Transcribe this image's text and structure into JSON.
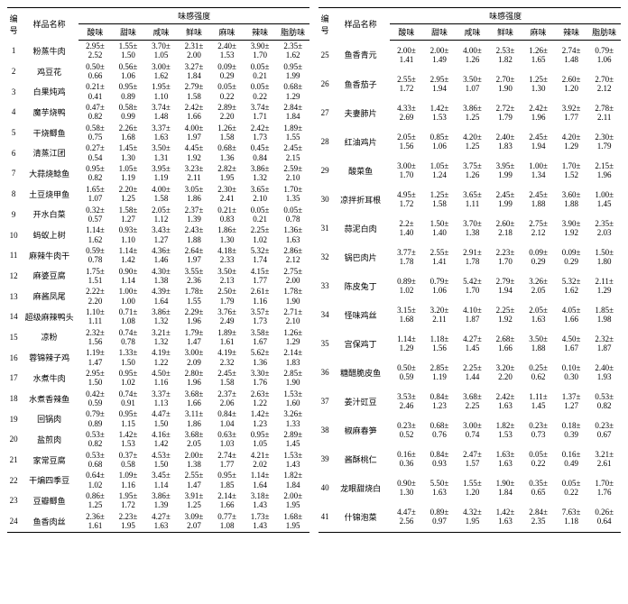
{
  "headers": {
    "num": "编号",
    "name": "样品名称",
    "group": "味感强度",
    "cols": [
      "酸味",
      "甜味",
      "咸味",
      "鲜味",
      "麻味",
      "辣味",
      "脂肪味"
    ]
  },
  "left": [
    {
      "n": "1",
      "name": "粉蒸牛肉",
      "v": [
        [
          "2.95±",
          "2.52"
        ],
        [
          "1.55±",
          "1.50"
        ],
        [
          "3.70±",
          "1.05"
        ],
        [
          "2.31±",
          "2.00"
        ],
        [
          "2.40±",
          "1.53"
        ],
        [
          "3.90±",
          "1.70"
        ],
        [
          "2.35±",
          "1.62"
        ]
      ]
    },
    {
      "n": "2",
      "name": "鸡豆花",
      "v": [
        [
          "0.50±",
          "0.66"
        ],
        [
          "0.56±",
          "1.06"
        ],
        [
          "3.00±",
          "1.62"
        ],
        [
          "3.27±",
          "1.84"
        ],
        [
          "0.09±",
          "0.29"
        ],
        [
          "0.05±",
          "0.21"
        ],
        [
          "0.95±",
          "1.99"
        ]
      ]
    },
    {
      "n": "3",
      "name": "白果炖鸡",
      "v": [
        [
          "0.21±",
          "0.41"
        ],
        [
          "0.95±",
          "0.89"
        ],
        [
          "1.95±",
          "1.10"
        ],
        [
          "2.79±",
          "1.58"
        ],
        [
          "0.05±",
          "0.22"
        ],
        [
          "0.05±",
          "0.22"
        ],
        [
          "0.68±",
          "1.29"
        ]
      ]
    },
    {
      "n": "4",
      "name": "魔芋烧鸭",
      "v": [
        [
          "0.47±",
          "0.82"
        ],
        [
          "0.58±",
          "0.99"
        ],
        [
          "3.74±",
          "1.48"
        ],
        [
          "2.42±",
          "1.66"
        ],
        [
          "2.89±",
          "2.20"
        ],
        [
          "3.74±",
          "1.71"
        ],
        [
          "2.84±",
          "1.84"
        ]
      ]
    },
    {
      "n": "5",
      "name": "干烧鲫鱼",
      "v": [
        [
          "0.58±",
          "0.75"
        ],
        [
          "2.26±",
          "1.68"
        ],
        [
          "3.37±",
          "1.63"
        ],
        [
          "4.00±",
          "1.97"
        ],
        [
          "1.26±",
          "1.58"
        ],
        [
          "2.42±",
          "1.73"
        ],
        [
          "1.89±",
          "1.55"
        ]
      ]
    },
    {
      "n": "6",
      "name": "清蒸江团",
      "v": [
        [
          "0.27±",
          "0.54"
        ],
        [
          "1.45±",
          "1.30"
        ],
        [
          "3.50±",
          "1.31"
        ],
        [
          "4.45±",
          "1.92"
        ],
        [
          "0.68±",
          "1.36"
        ],
        [
          "0.45±",
          "0.84"
        ],
        [
          "2.45±",
          "2.15"
        ]
      ]
    },
    {
      "n": "7",
      "name": "大蒜烧鲶鱼",
      "v": [
        [
          "0.95±",
          "0.82"
        ],
        [
          "1.05±",
          "1.19"
        ],
        [
          "3.95±",
          "1.19"
        ],
        [
          "3.23±",
          "2.11"
        ],
        [
          "2.82±",
          "1.95"
        ],
        [
          "3.86±",
          "1.32"
        ],
        [
          "2.59±",
          "2.10"
        ]
      ]
    },
    {
      "n": "8",
      "name": "土豆烧甲鱼",
      "v": [
        [
          "1.65±",
          "1.07"
        ],
        [
          "2.20±",
          "1.25"
        ],
        [
          "4.00±",
          "1.58"
        ],
        [
          "3.05±",
          "1.86"
        ],
        [
          "2.30±",
          "2.41"
        ],
        [
          "3.65±",
          "2.10"
        ],
        [
          "1.70±",
          "1.35"
        ]
      ]
    },
    {
      "n": "9",
      "name": "开水白菜",
      "v": [
        [
          "0.32±",
          "0.57"
        ],
        [
          "1.58±",
          "1.27"
        ],
        [
          "2.05±",
          "1.12"
        ],
        [
          "2.37±",
          "1.39"
        ],
        [
          "0.21±",
          "0.83"
        ],
        [
          "0.05±",
          "0.21"
        ],
        [
          "0.05±",
          "0.78"
        ]
      ]
    },
    {
      "n": "10",
      "name": "蚂蚁上树",
      "v": [
        [
          "1.14±",
          "1.62"
        ],
        [
          "0.93±",
          "1.10"
        ],
        [
          "3.43±",
          "1.27"
        ],
        [
          "2.43±",
          "1.88"
        ],
        [
          "1.86±",
          "1.30"
        ],
        [
          "2.25±",
          "1.02"
        ],
        [
          "1.36±",
          "1.63"
        ]
      ]
    },
    {
      "n": "11",
      "name": "麻辣牛肉干",
      "v": [
        [
          "0.59±",
          "0.78"
        ],
        [
          "1.14±",
          "1.42"
        ],
        [
          "4.36±",
          "1.46"
        ],
        [
          "2.64±",
          "1.97"
        ],
        [
          "4.18±",
          "2.33"
        ],
        [
          "5.32±",
          "1.74"
        ],
        [
          "2.86±",
          "2.12"
        ]
      ]
    },
    {
      "n": "12",
      "name": "麻婆豆腐",
      "v": [
        [
          "1.75±",
          "1.51"
        ],
        [
          "0.90±",
          "1.14"
        ],
        [
          "4.30±",
          "1.38"
        ],
        [
          "3.55±",
          "2.36"
        ],
        [
          "3.50±",
          "2.13"
        ],
        [
          "4.15±",
          "1.77"
        ],
        [
          "2.75±",
          "2.00"
        ]
      ]
    },
    {
      "n": "13",
      "name": "麻酱凤尾",
      "v": [
        [
          "2.22±",
          "2.20"
        ],
        [
          "1.00±",
          "1.00"
        ],
        [
          "4.39±",
          "1.64"
        ],
        [
          "1.78±",
          "1.55"
        ],
        [
          "2.50±",
          "1.79"
        ],
        [
          "2.61±",
          "1.16"
        ],
        [
          "1.78±",
          "1.90"
        ]
      ]
    },
    {
      "n": "14",
      "name": "超级麻辣鸭头",
      "v": [
        [
          "1.10±",
          "1.11"
        ],
        [
          "0.71±",
          "1.08"
        ],
        [
          "3.86±",
          "1.32"
        ],
        [
          "2.29±",
          "1.96"
        ],
        [
          "3.76±",
          "2.49"
        ],
        [
          "3.57±",
          "1.73"
        ],
        [
          "2.71±",
          "2.10"
        ]
      ]
    },
    {
      "n": "15",
      "name": "凉粉",
      "v": [
        [
          "2.32±",
          "1.56"
        ],
        [
          "0.74±",
          "0.78"
        ],
        [
          "3.21±",
          "1.32"
        ],
        [
          "1.79±",
          "1.47"
        ],
        [
          "1.89±",
          "1.61"
        ],
        [
          "3.58±",
          "1.67"
        ],
        [
          "1.26±",
          "1.29"
        ]
      ]
    },
    {
      "n": "16",
      "name": "蓉锦辣子鸡",
      "v": [
        [
          "1.19±",
          "1.47"
        ],
        [
          "1.33±",
          "1.50"
        ],
        [
          "4.19±",
          "1.22"
        ],
        [
          "3.00±",
          "2.09"
        ],
        [
          "4.19±",
          "2.32"
        ],
        [
          "5.62±",
          "1.36"
        ],
        [
          "2.14±",
          "1.83"
        ]
      ]
    },
    {
      "n": "17",
      "name": "水煮牛肉",
      "v": [
        [
          "2.95±",
          "1.50"
        ],
        [
          "0.95±",
          "1.02"
        ],
        [
          "4.50±",
          "1.16"
        ],
        [
          "2.80±",
          "1.96"
        ],
        [
          "2.45±",
          "1.58"
        ],
        [
          "3.30±",
          "1.76"
        ],
        [
          "2.85±",
          "1.90"
        ]
      ]
    },
    {
      "n": "18",
      "name": "水煮香辣鱼",
      "v": [
        [
          "0.42±",
          "0.59"
        ],
        [
          "0.74±",
          "0.91"
        ],
        [
          "3.37±",
          "1.13"
        ],
        [
          "3.68±",
          "1.66"
        ],
        [
          "2.37±",
          "2.06"
        ],
        [
          "2.63±",
          "1.22"
        ],
        [
          "1.53±",
          "1.60"
        ]
      ]
    },
    {
      "n": "19",
      "name": "回锅肉",
      "v": [
        [
          "0.79±",
          "0.89"
        ],
        [
          "0.95±",
          "1.15"
        ],
        [
          "4.47±",
          "1.50"
        ],
        [
          "3.11±",
          "1.86"
        ],
        [
          "0.84±",
          "1.04"
        ],
        [
          "1.42±",
          "1.23"
        ],
        [
          "3.26±",
          "1.33"
        ]
      ]
    },
    {
      "n": "20",
      "name": "盐煎肉",
      "v": [
        [
          "0.53±",
          "0.82"
        ],
        [
          "1.42±",
          "1.53"
        ],
        [
          "4.16±",
          "1.42"
        ],
        [
          "3.68±",
          "2.05"
        ],
        [
          "0.63±",
          "1.03"
        ],
        [
          "0.95±",
          "1.05"
        ],
        [
          "2.89±",
          "1.45"
        ]
      ]
    },
    {
      "n": "21",
      "name": "家常豆腐",
      "v": [
        [
          "0.53±",
          "0.68"
        ],
        [
          "0.37±",
          "0.58"
        ],
        [
          "4.53±",
          "1.50"
        ],
        [
          "2.00±",
          "1.38"
        ],
        [
          "2.74±",
          "1.77"
        ],
        [
          "4.21±",
          "2.02"
        ],
        [
          "1.53±",
          "1.43"
        ]
      ]
    },
    {
      "n": "22",
      "name": "干煸四季豆",
      "v": [
        [
          "0.64±",
          "1.02"
        ],
        [
          "1.09±",
          "1.16"
        ],
        [
          "3.45±",
          "1.14"
        ],
        [
          "2.55±",
          "1.47"
        ],
        [
          "0.95±",
          "1.85"
        ],
        [
          "1.14±",
          "1.64"
        ],
        [
          "1.82±",
          "1.84"
        ]
      ]
    },
    {
      "n": "23",
      "name": "豆瓣鲫鱼",
      "v": [
        [
          "0.86±",
          "1.25"
        ],
        [
          "1.95±",
          "1.72"
        ],
        [
          "3.86±",
          "1.39"
        ],
        [
          "3.91±",
          "1.25"
        ],
        [
          "2.14±",
          "1.66"
        ],
        [
          "3.18±",
          "1.43"
        ],
        [
          "2.00±",
          "1.95"
        ]
      ]
    },
    {
      "n": "24",
      "name": "鱼香肉丝",
      "v": [
        [
          "2.36±",
          "1.61"
        ],
        [
          "2.23±",
          "1.95"
        ],
        [
          "4.27±",
          "1.63"
        ],
        [
          "3.09±",
          "2.07"
        ],
        [
          "0.77±",
          "1.08"
        ],
        [
          "1.73±",
          "1.43"
        ],
        [
          "1.68±",
          "1.95"
        ]
      ]
    }
  ],
  "right": [
    {
      "n": "25",
      "name": "鱼香青元",
      "v": [
        [
          "2.00±",
          "1.41"
        ],
        [
          "2.00±",
          "1.49"
        ],
        [
          "4.00±",
          "1.26"
        ],
        [
          "2.53±",
          "1.82"
        ],
        [
          "1.26±",
          "1.65"
        ],
        [
          "2.74±",
          "1.48"
        ],
        [
          "0.79±",
          "1.06"
        ]
      ]
    },
    {
      "n": "26",
      "name": "鱼香茄子",
      "v": [
        [
          "2.55±",
          "1.72"
        ],
        [
          "2.95±",
          "1.94"
        ],
        [
          "3.50±",
          "1.07"
        ],
        [
          "2.70±",
          "1.90"
        ],
        [
          "1.25±",
          "1.30"
        ],
        [
          "2.60±",
          "1.20"
        ],
        [
          "2.70±",
          "2.12"
        ]
      ]
    },
    {
      "n": "27",
      "name": "夫妻肺片",
      "v": [
        [
          "4.33±",
          "2.69"
        ],
        [
          "1.42±",
          "1.53"
        ],
        [
          "3.86±",
          "1.25"
        ],
        [
          "2.72±",
          "1.79"
        ],
        [
          "2.42±",
          "1.96"
        ],
        [
          "3.92±",
          "1.77"
        ],
        [
          "2.78±",
          "2.11"
        ]
      ]
    },
    {
      "n": "28",
      "name": "红油鸡片",
      "v": [
        [
          "2.05±",
          "1.56"
        ],
        [
          "0.85±",
          "1.06"
        ],
        [
          "4.20±",
          "1.25"
        ],
        [
          "2.40±",
          "1.83"
        ],
        [
          "2.45±",
          "1.94"
        ],
        [
          "4.20±",
          "1.29"
        ],
        [
          "2.30±",
          "1.79"
        ]
      ]
    },
    {
      "n": "29",
      "name": "酸菜鱼",
      "v": [
        [
          "3.00±",
          "1.70"
        ],
        [
          "1.05±",
          "1.24"
        ],
        [
          "3.75±",
          "1.26"
        ],
        [
          "3.95±",
          "1.99"
        ],
        [
          "1.00±",
          "1.34"
        ],
        [
          "1.70±",
          "1.52"
        ],
        [
          "2.15±",
          "1.96"
        ]
      ]
    },
    {
      "n": "30",
      "name": "凉拌折耳根",
      "v": [
        [
          "4.95±",
          "1.72"
        ],
        [
          "1.25±",
          "1.58"
        ],
        [
          "3.65±",
          "1.11"
        ],
        [
          "2.45±",
          "1.99"
        ],
        [
          "2.45±",
          "1.88"
        ],
        [
          "3.60±",
          "1.88"
        ],
        [
          "1.00±",
          "1.45"
        ]
      ]
    },
    {
      "n": "31",
      "name": "蒜泥白肉",
      "v": [
        [
          "2.2±",
          "1.40"
        ],
        [
          "1.50±",
          "1.40"
        ],
        [
          "3.70±",
          "1.38"
        ],
        [
          "2.60±",
          "2.18"
        ],
        [
          "2.75±",
          "2.12"
        ],
        [
          "3.90±",
          "1.92"
        ],
        [
          "2.35±",
          "2.03"
        ]
      ]
    },
    {
      "n": "32",
      "name": "锅巴肉片",
      "v": [
        [
          "3.77±",
          "1.78"
        ],
        [
          "2.55±",
          "1.41"
        ],
        [
          "2.91±",
          "1.78"
        ],
        [
          "2.23±",
          "1.70"
        ],
        [
          "0.09±",
          "0.29"
        ],
        [
          "0.09±",
          "0.29"
        ],
        [
          "1.50±",
          "1.80"
        ]
      ]
    },
    {
      "n": "33",
      "name": "陈皮兔丁",
      "v": [
        [
          "0.89±",
          "1.02"
        ],
        [
          "0.79±",
          "1.06"
        ],
        [
          "5.42±",
          "1.70"
        ],
        [
          "2.79±",
          "1.94"
        ],
        [
          "3.26±",
          "2.05"
        ],
        [
          "5.32±",
          "1.62"
        ],
        [
          "2.11±",
          "1.29"
        ]
      ]
    },
    {
      "n": "34",
      "name": "怪味鸡丝",
      "v": [
        [
          "3.15±",
          "1.68"
        ],
        [
          "3.20±",
          "2.11"
        ],
        [
          "4.10±",
          "1.87"
        ],
        [
          "2.25±",
          "1.92"
        ],
        [
          "2.05±",
          "1.63"
        ],
        [
          "4.05±",
          "1.66"
        ],
        [
          "1.85±",
          "1.98"
        ]
      ]
    },
    {
      "n": "35",
      "name": "宫保鸡丁",
      "v": [
        [
          "1.14±",
          "1.29"
        ],
        [
          "1.18±",
          "1.56"
        ],
        [
          "4.27±",
          "1.45"
        ],
        [
          "2.68±",
          "1.66"
        ],
        [
          "3.50±",
          "1.88"
        ],
        [
          "4.50±",
          "1.67"
        ],
        [
          "2.32±",
          "1.87"
        ]
      ]
    },
    {
      "n": "36",
      "name": "糖醋脆皮鱼",
      "v": [
        [
          "0.50±",
          "0.59"
        ],
        [
          "2.85±",
          "1.19"
        ],
        [
          "2.25±",
          "1.44"
        ],
        [
          "3.20±",
          "2.20"
        ],
        [
          "0.25±",
          "0.62"
        ],
        [
          "0.10±",
          "0.30"
        ],
        [
          "2.40±",
          "1.93"
        ]
      ]
    },
    {
      "n": "37",
      "name": "姜汁豇豆",
      "v": [
        [
          "3.53±",
          "2.46"
        ],
        [
          "0.84±",
          "1.23"
        ],
        [
          "3.68±",
          "2.25"
        ],
        [
          "2.42±",
          "1.63"
        ],
        [
          "1.11±",
          "1.45"
        ],
        [
          "1.37±",
          "1.27"
        ],
        [
          "0.53±",
          "0.82"
        ]
      ]
    },
    {
      "n": "38",
      "name": "椒麻春笋",
      "v": [
        [
          "0.23±",
          "0.52"
        ],
        [
          "0.68±",
          "0.76"
        ],
        [
          "3.00±",
          "0.74"
        ],
        [
          "1.82±",
          "1.53"
        ],
        [
          "0.23±",
          "0.73"
        ],
        [
          "0.18±",
          "0.39"
        ],
        [
          "0.23±",
          "0.67"
        ]
      ]
    },
    {
      "n": "39",
      "name": "酱酥桃仁",
      "v": [
        [
          "0.16±",
          "0.36"
        ],
        [
          "0.84±",
          "0.93"
        ],
        [
          "2.47±",
          "1.57"
        ],
        [
          "1.63±",
          "1.63"
        ],
        [
          "0.05±",
          "0.22"
        ],
        [
          "0.16±",
          "0.49"
        ],
        [
          "3.21±",
          "2.61"
        ]
      ]
    },
    {
      "n": "40",
      "name": "龙眼甜烧白",
      "v": [
        [
          "0.90±",
          "1.30"
        ],
        [
          "5.50±",
          "1.63"
        ],
        [
          "1.55±",
          "1.20"
        ],
        [
          "1.90±",
          "1.84"
        ],
        [
          "0.35±",
          "0.65"
        ],
        [
          "0.05±",
          "0.22"
        ],
        [
          "1.70±",
          "1.76"
        ]
      ]
    },
    {
      "n": "41",
      "name": "什锦泡菜",
      "v": [
        [
          "4.47±",
          "2.56"
        ],
        [
          "0.89±",
          "0.97"
        ],
        [
          "4.32±",
          "1.95"
        ],
        [
          "1.42±",
          "1.63"
        ],
        [
          "2.84±",
          "2.35"
        ],
        [
          "7.63±",
          "1.18"
        ],
        [
          "0.26±",
          "0.64"
        ]
      ]
    }
  ]
}
